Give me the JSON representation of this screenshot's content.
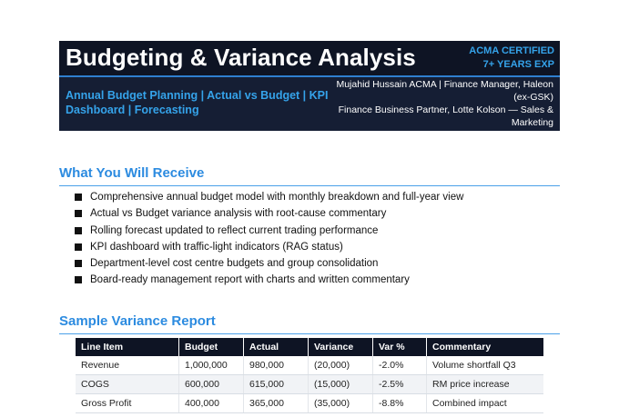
{
  "header": {
    "title": "Budgeting & Variance Analysis",
    "badge_line1": "ACMA CERTIFIED",
    "badge_line2": "7+ YEARS EXP",
    "tagline": "Annual Budget Planning | Actual vs Budget | KPI Dashboard | Forecasting",
    "author_line1": "Mujahid Hussain ACMA | Finance Manager, Haleon (ex-GSK)",
    "author_line2": "Finance Business Partner, Lotte Kolson — Sales & Marketing"
  },
  "receive": {
    "heading": "What You Will Receive",
    "items": [
      "Comprehensive annual budget model with monthly breakdown and full-year view",
      "Actual vs Budget variance analysis with root-cause commentary",
      "Rolling forecast updated to reflect current trading performance",
      "KPI dashboard with traffic-light indicators (RAG status)",
      "Department-level cost centre budgets and group consolidation",
      "Board-ready management report with charts and written commentary"
    ]
  },
  "report": {
    "heading": "Sample Variance Report",
    "columns": [
      "Line Item",
      "Budget",
      "Actual",
      "Variance",
      "Var %",
      "Commentary"
    ],
    "rows": [
      [
        "Revenue",
        "1,000,000",
        "980,000",
        "(20,000)",
        "-2.0%",
        "Volume shortfall Q3"
      ],
      [
        "COGS",
        "600,000",
        "615,000",
        "(15,000)",
        "-2.5%",
        "RM price increase"
      ],
      [
        "Gross Profit",
        "400,000",
        "365,000",
        "(35,000)",
        "-8.8%",
        "Combined impact"
      ]
    ]
  },
  "colors": {
    "header_bg": "#151e34",
    "accent": "#2c8be0",
    "table_header_bg": "#0e1424"
  }
}
